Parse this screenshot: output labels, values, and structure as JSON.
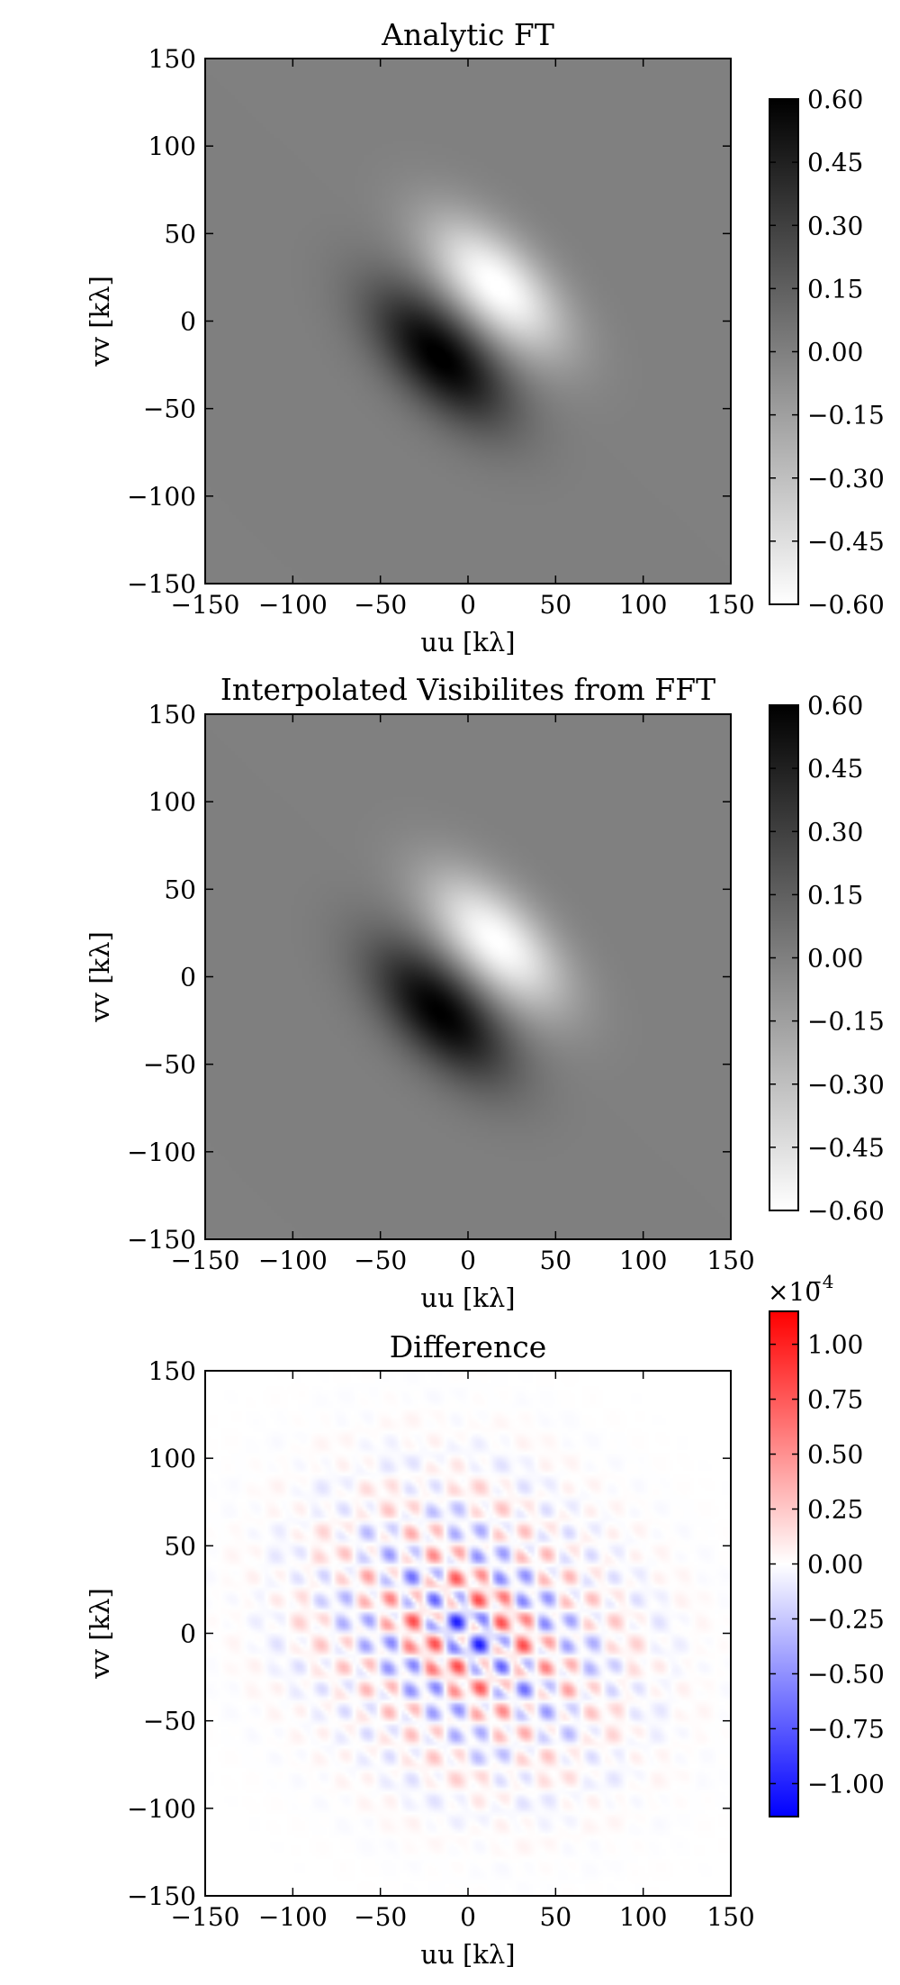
{
  "chart_data": [
    {
      "type": "heatmap",
      "title": "Analytic FT",
      "xlabel": "uu [kλ]",
      "ylabel": "vv [kλ]",
      "xlim": [
        -150,
        150
      ],
      "ylim": [
        -150,
        150
      ],
      "xticks": [
        -150,
        -100,
        -50,
        0,
        50,
        100,
        150
      ],
      "yticks": [
        -150,
        -100,
        -50,
        0,
        50,
        100,
        150
      ],
      "colormap": "gray_r",
      "colorbar": {
        "min": -0.6,
        "max": 0.6,
        "ticks": [
          0.6,
          0.45,
          0.3,
          0.15,
          0.0,
          -0.15,
          -0.3,
          -0.45,
          -0.6
        ],
        "ticklabels": [
          "0.60",
          "0.45",
          "0.30",
          "0.15",
          "0.00",
          "−0.15",
          "−0.30",
          "−0.45",
          "−0.60"
        ],
        "multiplier": ""
      },
      "features": {
        "positive_peak": {
          "u": -15,
          "v": -20,
          "value": 0.6
        },
        "negative_peak": {
          "u": 15,
          "v": 20,
          "value": -0.6
        },
        "background": 0.0
      }
    },
    {
      "type": "heatmap",
      "title": "Interpolated Visibilites from FFT",
      "xlabel": "uu [kλ]",
      "ylabel": "vv [kλ]",
      "xlim": [
        -150,
        150
      ],
      "ylim": [
        -150,
        150
      ],
      "xticks": [
        -150,
        -100,
        -50,
        0,
        50,
        100,
        150
      ],
      "yticks": [
        -150,
        -100,
        -50,
        0,
        50,
        100,
        150
      ],
      "colormap": "gray_r",
      "colorbar": {
        "min": -0.6,
        "max": 0.6,
        "ticks": [
          0.6,
          0.45,
          0.3,
          0.15,
          0.0,
          -0.15,
          -0.3,
          -0.45,
          -0.6
        ],
        "ticklabels": [
          "0.60",
          "0.45",
          "0.30",
          "0.15",
          "0.00",
          "−0.15",
          "−0.30",
          "−0.45",
          "−0.60"
        ],
        "multiplier": ""
      },
      "features": {
        "positive_peak": {
          "u": -15,
          "v": -20,
          "value": 0.6
        },
        "negative_peak": {
          "u": 15,
          "v": 20,
          "value": -0.6
        },
        "background": 0.0
      }
    },
    {
      "type": "heatmap",
      "title": "Difference",
      "xlabel": "uu [kλ]",
      "ylabel": "vv [kλ]",
      "xlim": [
        -150,
        150
      ],
      "ylim": [
        -150,
        150
      ],
      "xticks": [
        -150,
        -100,
        -50,
        0,
        50,
        100,
        150
      ],
      "yticks": [
        -150,
        -100,
        -50,
        0,
        50,
        100,
        150
      ],
      "colormap": "bwr",
      "colorbar": {
        "min": -1.15,
        "max": 1.15,
        "ticks": [
          1.0,
          0.75,
          0.5,
          0.25,
          0.0,
          -0.25,
          -0.5,
          -0.75,
          -1.0
        ],
        "ticklabels": [
          "1.00",
          "0.75",
          "0.50",
          "0.25",
          "0.00",
          "−0.25",
          "−0.50",
          "−0.75",
          "−1.00"
        ],
        "multiplier": "×10",
        "multiplier_exponent": "−4"
      },
      "features": {
        "pattern": "checkerboard ripple",
        "extent_radius": 100,
        "max_abs": 1.15
      }
    }
  ]
}
